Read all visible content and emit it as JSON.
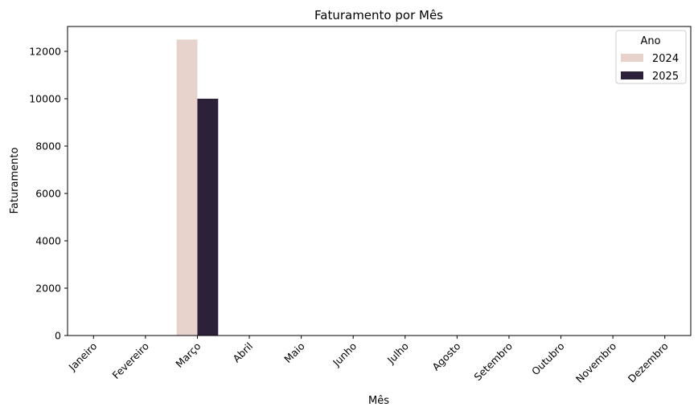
{
  "chart_data": {
    "type": "bar",
    "title": "Faturamento por Mês",
    "xlabel": "Mês",
    "ylabel": "Faturamento",
    "categories": [
      "Janeiro",
      "Fevereiro",
      "Março",
      "Abril",
      "Maio",
      "Junho",
      "Julho",
      "Agosto",
      "Setembro",
      "Outubro",
      "Novembro",
      "Dezembro"
    ],
    "series": [
      {
        "name": "2024",
        "color": "#e8d2cc",
        "values": [
          0,
          0,
          12500,
          0,
          0,
          0,
          0,
          0,
          0,
          0,
          0,
          0
        ]
      },
      {
        "name": "2025",
        "color": "#2d213a",
        "values": [
          0,
          0,
          10000,
          0,
          0,
          0,
          0,
          0,
          0,
          0,
          0,
          0
        ]
      }
    ],
    "ylim": [
      0,
      13050
    ],
    "yticks": [
      0,
      2000,
      4000,
      6000,
      8000,
      10000,
      12000
    ],
    "legend": {
      "title": "Ano",
      "position": "top-right"
    },
    "grid": false
  }
}
